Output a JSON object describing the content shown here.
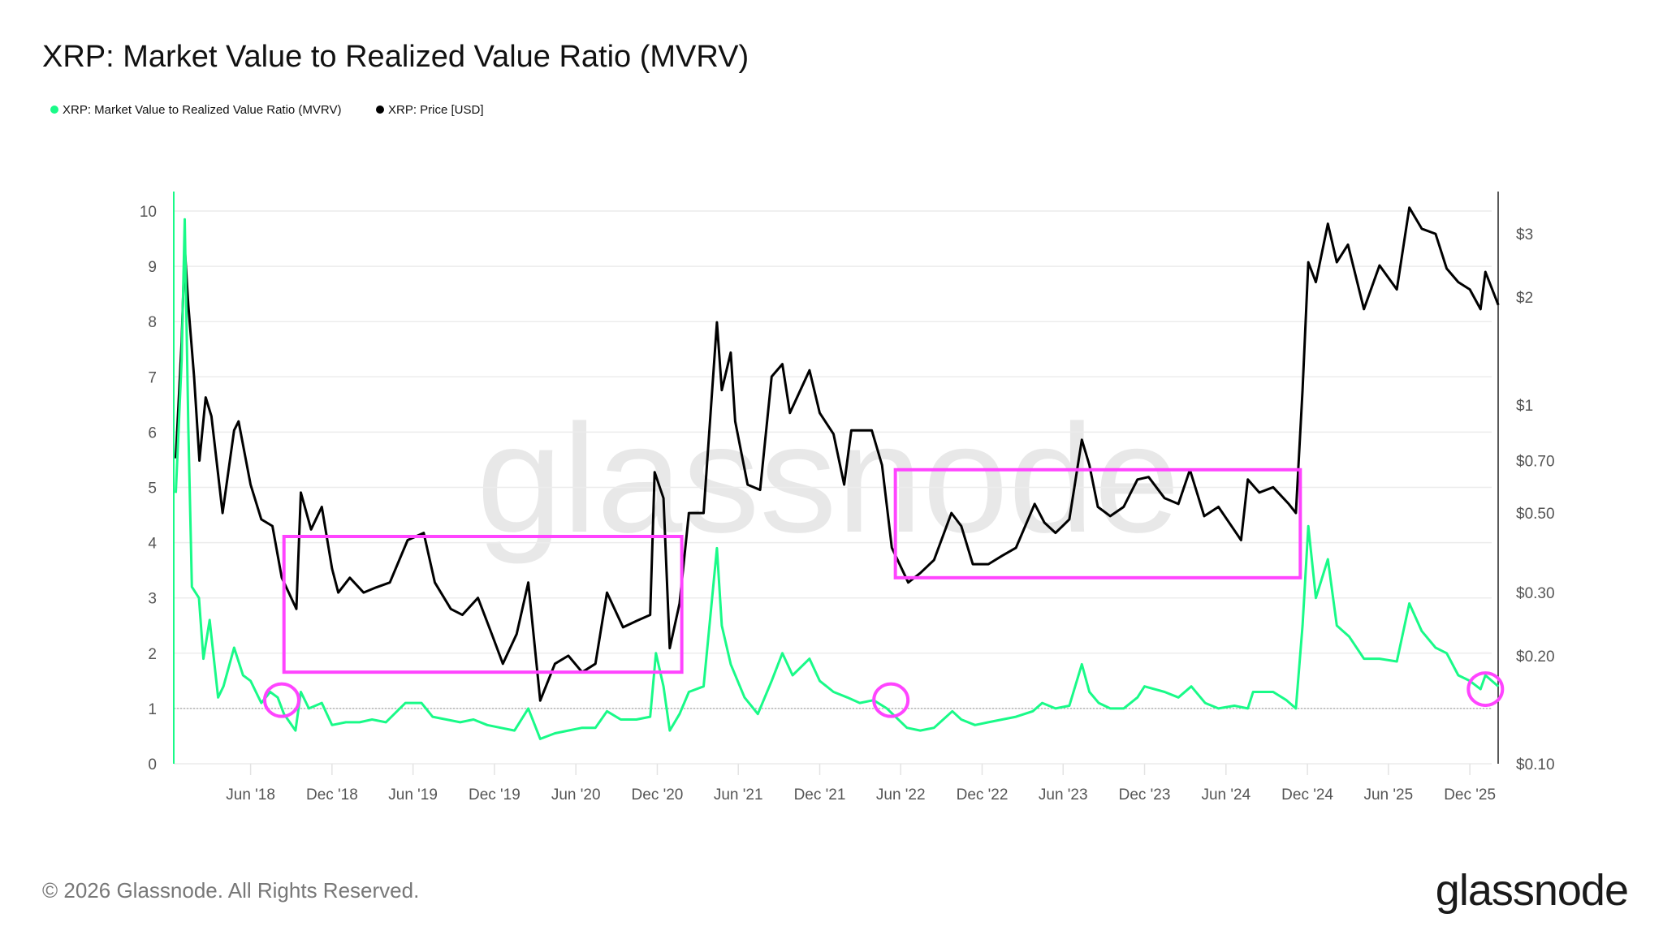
{
  "title": "XRP: Market Value to Realized Value Ratio (MVRV)",
  "footer": "© 2026 Glassnode. All Rights Reserved.",
  "logo": "glassnode",
  "watermark": "glassnode",
  "colors": {
    "mvrv": "#19fa88",
    "price": "#000000",
    "annotation": "#ff44ff",
    "grid": "#ececec"
  },
  "chart_data": {
    "type": "line",
    "title": "XRP: Market Value to Realized Value Ratio (MVRV)",
    "legend_position": "top-left",
    "grid": true,
    "x_range": [
      "2017-12-15",
      "2026-02-05"
    ],
    "x_ticks": [
      {
        "date": "2018-06-01",
        "label": "Jun '18"
      },
      {
        "date": "2018-12-01",
        "label": "Dec '18"
      },
      {
        "date": "2019-06-01",
        "label": "Jun '19"
      },
      {
        "date": "2019-12-01",
        "label": "Dec '19"
      },
      {
        "date": "2020-06-01",
        "label": "Jun '20"
      },
      {
        "date": "2020-12-01",
        "label": "Dec '20"
      },
      {
        "date": "2021-06-01",
        "label": "Jun '21"
      },
      {
        "date": "2021-12-01",
        "label": "Dec '21"
      },
      {
        "date": "2022-06-01",
        "label": "Jun '22"
      },
      {
        "date": "2022-12-01",
        "label": "Dec '22"
      },
      {
        "date": "2023-06-01",
        "label": "Jun '23"
      },
      {
        "date": "2023-12-01",
        "label": "Dec '23"
      },
      {
        "date": "2024-06-01",
        "label": "Jun '24"
      },
      {
        "date": "2024-12-01",
        "label": "Dec '24"
      },
      {
        "date": "2025-06-01",
        "label": "Jun '25"
      },
      {
        "date": "2025-12-01",
        "label": "Dec '25"
      }
    ],
    "y_left": {
      "scale": "linear",
      "range": [
        0,
        10.35
      ],
      "ticks": [
        0,
        1,
        2,
        3,
        4,
        5,
        6,
        7,
        8,
        9,
        10
      ],
      "tick_labels": [
        "0",
        "1",
        "2",
        "3",
        "4",
        "5",
        "6",
        "7",
        "8",
        "9",
        "10"
      ],
      "reference_line": 1
    },
    "y_right": {
      "scale": "log",
      "range": [
        0.0994,
        3.94
      ],
      "ticks": [
        0.1,
        0.2,
        0.3,
        0.5,
        0.7,
        1,
        2,
        3
      ],
      "tick_labels": [
        "$0.10",
        "$0.20",
        "$0.30",
        "$0.50",
        "$0.70",
        "$1",
        "$2",
        "$3"
      ]
    },
    "series": [
      {
        "name": "XRP: Market Value to Realized Value Ratio (MVRV)",
        "axis": "left",
        "points": [
          [
            "2017-12-15",
            4.9
          ],
          [
            "2017-12-28",
            7.3
          ],
          [
            "2018-01-04",
            9.85
          ],
          [
            "2018-01-12",
            6.1
          ],
          [
            "2018-01-20",
            3.2
          ],
          [
            "2018-02-05",
            3.0
          ],
          [
            "2018-02-15",
            1.9
          ],
          [
            "2018-03-01",
            2.6
          ],
          [
            "2018-03-20",
            1.2
          ],
          [
            "2018-04-01",
            1.4
          ],
          [
            "2018-04-25",
            2.1
          ],
          [
            "2018-05-15",
            1.6
          ],
          [
            "2018-06-01",
            1.5
          ],
          [
            "2018-06-25",
            1.1
          ],
          [
            "2018-07-15",
            1.3
          ],
          [
            "2018-08-01",
            1.2
          ],
          [
            "2018-08-15",
            0.9
          ],
          [
            "2018-09-10",
            0.6
          ],
          [
            "2018-09-22",
            1.3
          ],
          [
            "2018-10-10",
            1.0
          ],
          [
            "2018-11-08",
            1.1
          ],
          [
            "2018-12-01",
            0.7
          ],
          [
            "2019-01-01",
            0.75
          ],
          [
            "2019-02-01",
            0.75
          ],
          [
            "2019-03-01",
            0.8
          ],
          [
            "2019-04-01",
            0.75
          ],
          [
            "2019-05-15",
            1.1
          ],
          [
            "2019-06-20",
            1.1
          ],
          [
            "2019-07-15",
            0.85
          ],
          [
            "2019-08-15",
            0.8
          ],
          [
            "2019-09-15",
            0.75
          ],
          [
            "2019-10-15",
            0.8
          ],
          [
            "2019-11-15",
            0.7
          ],
          [
            "2019-12-15",
            0.65
          ],
          [
            "2020-01-15",
            0.6
          ],
          [
            "2020-02-15",
            1.0
          ],
          [
            "2020-03-13",
            0.45
          ],
          [
            "2020-04-15",
            0.55
          ],
          [
            "2020-05-15",
            0.6
          ],
          [
            "2020-06-15",
            0.65
          ],
          [
            "2020-07-15",
            0.65
          ],
          [
            "2020-08-10",
            0.95
          ],
          [
            "2020-09-10",
            0.8
          ],
          [
            "2020-10-15",
            0.8
          ],
          [
            "2020-11-15",
            0.85
          ],
          [
            "2020-11-28",
            2.0
          ],
          [
            "2020-12-15",
            1.4
          ],
          [
            "2020-12-29",
            0.6
          ],
          [
            "2021-01-20",
            0.9
          ],
          [
            "2021-02-10",
            1.3
          ],
          [
            "2021-03-15",
            1.4
          ],
          [
            "2021-04-14",
            3.9
          ],
          [
            "2021-04-25",
            2.5
          ],
          [
            "2021-05-15",
            1.8
          ],
          [
            "2021-06-15",
            1.2
          ],
          [
            "2021-07-15",
            0.9
          ],
          [
            "2021-08-15",
            1.5
          ],
          [
            "2021-09-08",
            2.0
          ],
          [
            "2021-10-01",
            1.6
          ],
          [
            "2021-11-08",
            1.9
          ],
          [
            "2021-12-01",
            1.5
          ],
          [
            "2022-01-01",
            1.3
          ],
          [
            "2022-02-01",
            1.2
          ],
          [
            "2022-03-01",
            1.1
          ],
          [
            "2022-04-01",
            1.15
          ],
          [
            "2022-05-01",
            1.0
          ],
          [
            "2022-06-15",
            0.65
          ],
          [
            "2022-07-15",
            0.6
          ],
          [
            "2022-08-15",
            0.65
          ],
          [
            "2022-09-25",
            0.95
          ],
          [
            "2022-10-15",
            0.8
          ],
          [
            "2022-11-15",
            0.7
          ],
          [
            "2022-12-15",
            0.75
          ],
          [
            "2023-01-15",
            0.8
          ],
          [
            "2023-02-15",
            0.85
          ],
          [
            "2023-03-25",
            0.95
          ],
          [
            "2023-04-15",
            1.1
          ],
          [
            "2023-05-15",
            1.0
          ],
          [
            "2023-06-15",
            1.05
          ],
          [
            "2023-07-13",
            1.8
          ],
          [
            "2023-07-30",
            1.3
          ],
          [
            "2023-08-20",
            1.1
          ],
          [
            "2023-09-15",
            1.0
          ],
          [
            "2023-10-15",
            1.0
          ],
          [
            "2023-11-15",
            1.2
          ],
          [
            "2023-12-01",
            1.4
          ],
          [
            "2024-01-15",
            1.3
          ],
          [
            "2024-02-15",
            1.2
          ],
          [
            "2024-03-15",
            1.4
          ],
          [
            "2024-04-15",
            1.1
          ],
          [
            "2024-05-15",
            1.0
          ],
          [
            "2024-06-20",
            1.05
          ],
          [
            "2024-07-20",
            1.0
          ],
          [
            "2024-08-01",
            1.3
          ],
          [
            "2024-09-15",
            1.3
          ],
          [
            "2024-10-15",
            1.15
          ],
          [
            "2024-11-05",
            1.0
          ],
          [
            "2024-11-20",
            2.5
          ],
          [
            "2024-12-03",
            4.3
          ],
          [
            "2024-12-20",
            3.0
          ],
          [
            "2025-01-16",
            3.7
          ],
          [
            "2025-02-05",
            2.5
          ],
          [
            "2025-03-05",
            2.3
          ],
          [
            "2025-04-07",
            1.9
          ],
          [
            "2025-05-12",
            1.9
          ],
          [
            "2025-06-20",
            1.85
          ],
          [
            "2025-07-18",
            2.9
          ],
          [
            "2025-08-15",
            2.4
          ],
          [
            "2025-09-15",
            2.1
          ],
          [
            "2025-10-10",
            2.0
          ],
          [
            "2025-11-05",
            1.6
          ],
          [
            "2025-12-01",
            1.5
          ],
          [
            "2025-12-25",
            1.35
          ],
          [
            "2026-01-05",
            1.6
          ],
          [
            "2026-02-03",
            1.4
          ]
        ]
      },
      {
        "name": "XRP: Price [USD]",
        "axis": "right",
        "points": [
          [
            "2017-12-15",
            0.71
          ],
          [
            "2017-12-28",
            1.5
          ],
          [
            "2018-01-04",
            2.75
          ],
          [
            "2018-01-12",
            1.9
          ],
          [
            "2018-01-25",
            1.2
          ],
          [
            "2018-02-06",
            0.7
          ],
          [
            "2018-02-20",
            1.05
          ],
          [
            "2018-03-05",
            0.93
          ],
          [
            "2018-03-30",
            0.5
          ],
          [
            "2018-04-25",
            0.85
          ],
          [
            "2018-05-05",
            0.9
          ],
          [
            "2018-06-01",
            0.6
          ],
          [
            "2018-06-25",
            0.48
          ],
          [
            "2018-07-20",
            0.46
          ],
          [
            "2018-08-10",
            0.33
          ],
          [
            "2018-09-12",
            0.27
          ],
          [
            "2018-09-22",
            0.57
          ],
          [
            "2018-10-15",
            0.45
          ],
          [
            "2018-11-08",
            0.52
          ],
          [
            "2018-12-01",
            0.35
          ],
          [
            "2018-12-15",
            0.3
          ],
          [
            "2019-01-10",
            0.33
          ],
          [
            "2019-02-10",
            0.3
          ],
          [
            "2019-03-10",
            0.31
          ],
          [
            "2019-04-10",
            0.32
          ],
          [
            "2019-05-20",
            0.42
          ],
          [
            "2019-06-25",
            0.44
          ],
          [
            "2019-07-20",
            0.32
          ],
          [
            "2019-08-25",
            0.27
          ],
          [
            "2019-09-20",
            0.26
          ],
          [
            "2019-10-25",
            0.29
          ],
          [
            "2019-11-25",
            0.23
          ],
          [
            "2019-12-20",
            0.19
          ],
          [
            "2020-01-20",
            0.23
          ],
          [
            "2020-02-15",
            0.32
          ],
          [
            "2020-03-13",
            0.15
          ],
          [
            "2020-04-15",
            0.19
          ],
          [
            "2020-05-15",
            0.2
          ],
          [
            "2020-06-15",
            0.18
          ],
          [
            "2020-07-15",
            0.19
          ],
          [
            "2020-08-10",
            0.3
          ],
          [
            "2020-09-15",
            0.24
          ],
          [
            "2020-10-15",
            0.25
          ],
          [
            "2020-11-15",
            0.26
          ],
          [
            "2020-11-25",
            0.65
          ],
          [
            "2020-12-15",
            0.55
          ],
          [
            "2020-12-29",
            0.21
          ],
          [
            "2021-01-20",
            0.28
          ],
          [
            "2021-02-10",
            0.5
          ],
          [
            "2021-03-15",
            0.5
          ],
          [
            "2021-04-14",
            1.7
          ],
          [
            "2021-04-25",
            1.1
          ],
          [
            "2021-05-15",
            1.4
          ],
          [
            "2021-05-25",
            0.9
          ],
          [
            "2021-06-22",
            0.6
          ],
          [
            "2021-07-20",
            0.58
          ],
          [
            "2021-08-15",
            1.2
          ],
          [
            "2021-09-08",
            1.3
          ],
          [
            "2021-09-25",
            0.95
          ],
          [
            "2021-11-08",
            1.25
          ],
          [
            "2021-12-01",
            0.95
          ],
          [
            "2022-01-01",
            0.83
          ],
          [
            "2022-01-25",
            0.6
          ],
          [
            "2022-02-10",
            0.85
          ],
          [
            "2022-03-28",
            0.85
          ],
          [
            "2022-04-20",
            0.68
          ],
          [
            "2022-05-12",
            0.4
          ],
          [
            "2022-06-18",
            0.32
          ],
          [
            "2022-07-15",
            0.34
          ],
          [
            "2022-08-15",
            0.37
          ],
          [
            "2022-09-23",
            0.5
          ],
          [
            "2022-10-15",
            0.46
          ],
          [
            "2022-11-10",
            0.36
          ],
          [
            "2022-12-15",
            0.36
          ],
          [
            "2023-01-15",
            0.38
          ],
          [
            "2023-02-15",
            0.4
          ],
          [
            "2023-03-29",
            0.53
          ],
          [
            "2023-04-20",
            0.47
          ],
          [
            "2023-05-15",
            0.44
          ],
          [
            "2023-06-15",
            0.48
          ],
          [
            "2023-07-13",
            0.8
          ],
          [
            "2023-07-30",
            0.68
          ],
          [
            "2023-08-18",
            0.52
          ],
          [
            "2023-09-15",
            0.49
          ],
          [
            "2023-10-15",
            0.52
          ],
          [
            "2023-11-15",
            0.62
          ],
          [
            "2023-12-10",
            0.63
          ],
          [
            "2024-01-15",
            0.55
          ],
          [
            "2024-02-15",
            0.53
          ],
          [
            "2024-03-12",
            0.66
          ],
          [
            "2024-04-13",
            0.49
          ],
          [
            "2024-05-15",
            0.52
          ],
          [
            "2024-07-05",
            0.42
          ],
          [
            "2024-07-20",
            0.62
          ],
          [
            "2024-08-15",
            0.57
          ],
          [
            "2024-09-15",
            0.59
          ],
          [
            "2024-10-20",
            0.53
          ],
          [
            "2024-11-05",
            0.5
          ],
          [
            "2024-11-20",
            1.1
          ],
          [
            "2024-12-03",
            2.5
          ],
          [
            "2024-12-20",
            2.2
          ],
          [
            "2025-01-16",
            3.2
          ],
          [
            "2025-02-05",
            2.5
          ],
          [
            "2025-03-02",
            2.8
          ],
          [
            "2025-04-07",
            1.85
          ],
          [
            "2025-05-12",
            2.45
          ],
          [
            "2025-06-20",
            2.1
          ],
          [
            "2025-07-18",
            3.55
          ],
          [
            "2025-08-15",
            3.1
          ],
          [
            "2025-09-15",
            3.0
          ],
          [
            "2025-10-10",
            2.4
          ],
          [
            "2025-11-05",
            2.2
          ],
          [
            "2025-12-01",
            2.1
          ],
          [
            "2025-12-25",
            1.85
          ],
          [
            "2026-01-05",
            2.35
          ],
          [
            "2026-02-03",
            1.9
          ]
        ]
      }
    ],
    "annotations": [
      {
        "type": "rectangle",
        "x_range": [
          "2018-08-15",
          "2021-01-25"
        ],
        "price_range": [
          0.18,
          0.43
        ]
      },
      {
        "type": "rectangle",
        "x_range": [
          "2022-05-20",
          "2024-11-15"
        ],
        "price_range": [
          0.33,
          0.66
        ]
      },
      {
        "type": "circle",
        "date": "2018-08-10",
        "mvrv": 1.15
      },
      {
        "type": "circle",
        "date": "2022-05-10",
        "mvrv": 1.15
      },
      {
        "type": "circle",
        "date": "2026-01-05",
        "mvrv": 1.35
      }
    ]
  }
}
